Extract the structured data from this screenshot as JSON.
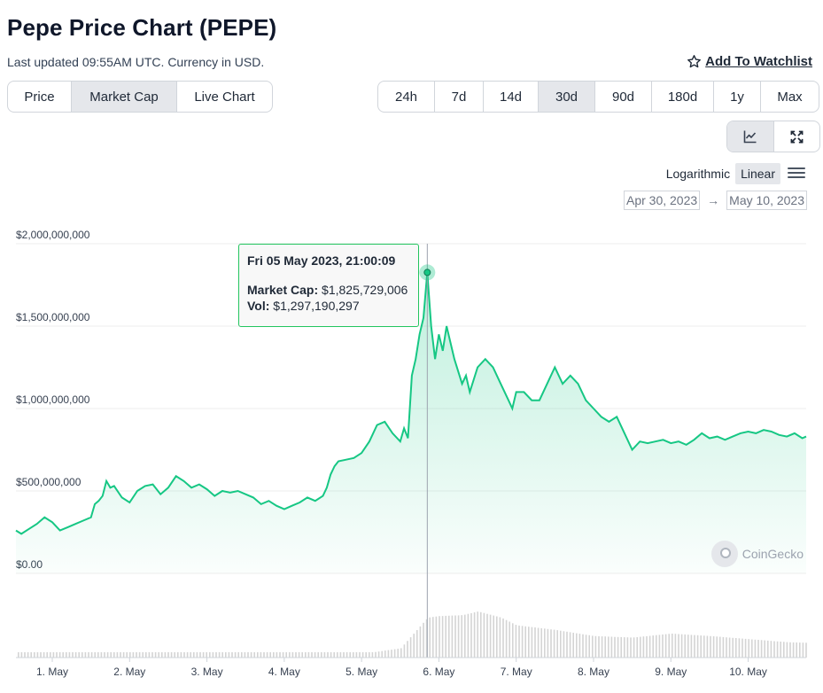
{
  "header": {
    "title": "Pepe Price Chart (PEPE)",
    "updated": "Last updated 09:55AM UTC. Currency in USD.",
    "watchlist_label": "Add To Watchlist"
  },
  "tabs": [
    {
      "label": "Price",
      "active": false
    },
    {
      "label": "Market Cap",
      "active": true
    },
    {
      "label": "Live Chart",
      "active": false
    }
  ],
  "ranges": [
    {
      "label": "24h",
      "active": false
    },
    {
      "label": "7d",
      "active": false
    },
    {
      "label": "14d",
      "active": false
    },
    {
      "label": "30d",
      "active": true
    },
    {
      "label": "90d",
      "active": false
    },
    {
      "label": "180d",
      "active": false
    },
    {
      "label": "1y",
      "active": false
    },
    {
      "label": "Max",
      "active": false
    }
  ],
  "view_icons": [
    "line-chart-icon",
    "expand-icon"
  ],
  "scale": {
    "log_label": "Logarithmic",
    "linear_label": "Linear",
    "active": "Linear"
  },
  "date_range": {
    "from": "Apr 30, 2023",
    "arrow": "→",
    "to": "May 10, 2023"
  },
  "tooltip": {
    "date": "Fri 05 May 2023, 21:00:09",
    "mcap_label": "Market Cap:",
    "mcap_value": "$1,825,729,006",
    "vol_label": "Vol:",
    "vol_value": "$1,297,190,297"
  },
  "watermark": "CoinGecko",
  "colors": {
    "line": "#16c784",
    "accent_border": "#22c55e"
  },
  "chart_data": {
    "type": "area",
    "title": "",
    "ylim": [
      0,
      2000000000
    ],
    "y_ticks": [
      "$2,000,000,000",
      "$1,500,000,000",
      "$1,000,000,000",
      "$500,000,000",
      "$0.00"
    ],
    "y_tick_values": [
      2000000000,
      1500000000,
      1000000000,
      500000000,
      0
    ],
    "x_ticks": [
      "1. May",
      "2. May",
      "3. May",
      "4. May",
      "5. May",
      "6. May",
      "7. May",
      "8. May",
      "9. May",
      "10. May"
    ],
    "x_range_days": [
      -0.47,
      9.75
    ],
    "series": [
      {
        "label": "Market Cap",
        "points": [
          [
            -0.47,
            260000000
          ],
          [
            -0.4,
            240000000
          ],
          [
            -0.3,
            270000000
          ],
          [
            -0.2,
            300000000
          ],
          [
            -0.1,
            340000000
          ],
          [
            0.0,
            310000000
          ],
          [
            0.1,
            260000000
          ],
          [
            0.2,
            280000000
          ],
          [
            0.3,
            300000000
          ],
          [
            0.4,
            320000000
          ],
          [
            0.5,
            340000000
          ],
          [
            0.55,
            420000000
          ],
          [
            0.6,
            440000000
          ],
          [
            0.65,
            470000000
          ],
          [
            0.7,
            560000000
          ],
          [
            0.75,
            520000000
          ],
          [
            0.8,
            530000000
          ],
          [
            0.9,
            460000000
          ],
          [
            1.0,
            430000000
          ],
          [
            1.1,
            500000000
          ],
          [
            1.2,
            530000000
          ],
          [
            1.3,
            540000000
          ],
          [
            1.4,
            480000000
          ],
          [
            1.5,
            520000000
          ],
          [
            1.6,
            590000000
          ],
          [
            1.7,
            560000000
          ],
          [
            1.8,
            520000000
          ],
          [
            1.9,
            540000000
          ],
          [
            2.0,
            510000000
          ],
          [
            2.1,
            470000000
          ],
          [
            2.2,
            500000000
          ],
          [
            2.3,
            490000000
          ],
          [
            2.4,
            500000000
          ],
          [
            2.5,
            480000000
          ],
          [
            2.6,
            460000000
          ],
          [
            2.7,
            420000000
          ],
          [
            2.8,
            440000000
          ],
          [
            2.9,
            410000000
          ],
          [
            3.0,
            390000000
          ],
          [
            3.1,
            410000000
          ],
          [
            3.2,
            430000000
          ],
          [
            3.3,
            460000000
          ],
          [
            3.4,
            440000000
          ],
          [
            3.5,
            470000000
          ],
          [
            3.55,
            520000000
          ],
          [
            3.6,
            600000000
          ],
          [
            3.65,
            650000000
          ],
          [
            3.7,
            680000000
          ],
          [
            3.8,
            690000000
          ],
          [
            3.9,
            700000000
          ],
          [
            4.0,
            730000000
          ],
          [
            4.1,
            800000000
          ],
          [
            4.2,
            900000000
          ],
          [
            4.3,
            920000000
          ],
          [
            4.4,
            850000000
          ],
          [
            4.5,
            800000000
          ],
          [
            4.55,
            880000000
          ],
          [
            4.6,
            820000000
          ],
          [
            4.65,
            1200000000
          ],
          [
            4.7,
            1300000000
          ],
          [
            4.75,
            1450000000
          ],
          [
            4.8,
            1550000000
          ],
          [
            4.85,
            1825729006
          ],
          [
            4.9,
            1500000000
          ],
          [
            4.95,
            1300000000
          ],
          [
            5.0,
            1450000000
          ],
          [
            5.05,
            1350000000
          ],
          [
            5.1,
            1500000000
          ],
          [
            5.15,
            1400000000
          ],
          [
            5.2,
            1300000000
          ],
          [
            5.3,
            1150000000
          ],
          [
            5.35,
            1200000000
          ],
          [
            5.4,
            1100000000
          ],
          [
            5.5,
            1250000000
          ],
          [
            5.6,
            1300000000
          ],
          [
            5.7,
            1250000000
          ],
          [
            5.8,
            1150000000
          ],
          [
            5.9,
            1050000000
          ],
          [
            5.95,
            1000000000
          ],
          [
            6.0,
            1100000000
          ],
          [
            6.1,
            1100000000
          ],
          [
            6.2,
            1050000000
          ],
          [
            6.3,
            1050000000
          ],
          [
            6.4,
            1150000000
          ],
          [
            6.5,
            1250000000
          ],
          [
            6.6,
            1150000000
          ],
          [
            6.7,
            1200000000
          ],
          [
            6.8,
            1150000000
          ],
          [
            6.9,
            1050000000
          ],
          [
            7.0,
            1000000000
          ],
          [
            7.1,
            950000000
          ],
          [
            7.2,
            920000000
          ],
          [
            7.3,
            950000000
          ],
          [
            7.4,
            850000000
          ],
          [
            7.5,
            750000000
          ],
          [
            7.6,
            800000000
          ],
          [
            7.7,
            790000000
          ],
          [
            7.8,
            800000000
          ],
          [
            7.9,
            810000000
          ],
          [
            8.0,
            790000000
          ],
          [
            8.1,
            800000000
          ],
          [
            8.2,
            780000000
          ],
          [
            8.3,
            810000000
          ],
          [
            8.4,
            850000000
          ],
          [
            8.5,
            820000000
          ],
          [
            8.6,
            830000000
          ],
          [
            8.7,
            810000000
          ],
          [
            8.8,
            830000000
          ],
          [
            8.9,
            850000000
          ],
          [
            9.0,
            860000000
          ],
          [
            9.1,
            850000000
          ],
          [
            9.2,
            870000000
          ],
          [
            9.3,
            860000000
          ],
          [
            9.4,
            840000000
          ],
          [
            9.5,
            830000000
          ],
          [
            9.6,
            850000000
          ],
          [
            9.7,
            820000000
          ],
          [
            9.75,
            830000000
          ]
        ]
      },
      {
        "label": "Vol",
        "points": [
          [
            -0.47,
            70000000
          ],
          [
            0.5,
            80000000
          ],
          [
            1.0,
            90000000
          ],
          [
            1.5,
            95000000
          ],
          [
            2.0,
            90000000
          ],
          [
            2.5,
            85000000
          ],
          [
            3.0,
            80000000
          ],
          [
            3.5,
            90000000
          ],
          [
            4.0,
            120000000
          ],
          [
            4.5,
            300000000
          ],
          [
            4.85,
            1297190297
          ],
          [
            5.0,
            1350000000
          ],
          [
            5.3,
            1380000000
          ],
          [
            5.5,
            1500000000
          ],
          [
            5.8,
            1300000000
          ],
          [
            6.0,
            1050000000
          ],
          [
            6.5,
            900000000
          ],
          [
            7.0,
            700000000
          ],
          [
            7.5,
            650000000
          ],
          [
            8.0,
            780000000
          ],
          [
            8.5,
            700000000
          ],
          [
            9.0,
            600000000
          ],
          [
            9.5,
            500000000
          ],
          [
            9.75,
            480000000
          ]
        ]
      }
    ],
    "highlight": {
      "x": 4.85,
      "y": 1825729006
    }
  }
}
